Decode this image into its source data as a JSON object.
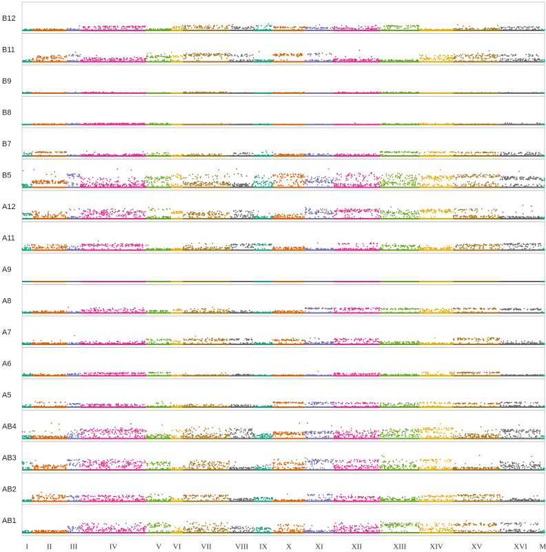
{
  "chart_data": {
    "type": "scatter",
    "title": "",
    "xlabel": "",
    "ylabel": "",
    "grid": false,
    "legend": "none",
    "panels": [
      "B12",
      "B11",
      "B9",
      "B8",
      "B7",
      "B5",
      "A12",
      "A11",
      "A9",
      "A8",
      "A7",
      "A6",
      "A5",
      "AB4",
      "AB3",
      "AB2",
      "AB1"
    ],
    "chromosomes": [
      {
        "label": "I",
        "length": 230,
        "color": "#1b9e77"
      },
      {
        "label": "II",
        "length": 813,
        "color": "#d95f02"
      },
      {
        "label": "III",
        "length": 317,
        "color": "#7570b3"
      },
      {
        "label": "IV",
        "length": 1532,
        "color": "#e7298a"
      },
      {
        "label": "V",
        "length": 577,
        "color": "#66a61e"
      },
      {
        "label": "VI",
        "length": 270,
        "color": "#e6ab02"
      },
      {
        "label": "VII",
        "length": 1091,
        "color": "#a6761d"
      },
      {
        "label": "VIII",
        "length": 563,
        "color": "#666666"
      },
      {
        "label": "IX",
        "length": 440,
        "color": "#1b9e77"
      },
      {
        "label": "X",
        "length": 746,
        "color": "#d95f02"
      },
      {
        "label": "XI",
        "length": 667,
        "color": "#7570b3"
      },
      {
        "label": "XII",
        "length": 1078,
        "color": "#e7298a"
      },
      {
        "label": "XIII",
        "length": 924,
        "color": "#66a61e"
      },
      {
        "label": "XIV",
        "length": 784,
        "color": "#e6ab02"
      },
      {
        "label": "XV",
        "length": 1091,
        "color": "#a6761d"
      },
      {
        "label": "XVI",
        "length": 948,
        "color": "#666666"
      },
      {
        "label": "M",
        "length": 86,
        "color": "#1b9e77"
      }
    ],
    "panel_activity": {
      "B12": 0.35,
      "B11": 0.6,
      "B9": 0.08,
      "B8": 0.1,
      "B7": 0.3,
      "B5": 0.95,
      "A12": 0.7,
      "A11": 0.5,
      "A9": 0.0,
      "A8": 0.35,
      "A7": 0.45,
      "A6": 0.25,
      "A5": 0.35,
      "AB4": 0.8,
      "AB3": 0.75,
      "AB2": 0.5,
      "AB1": 0.7
    }
  }
}
